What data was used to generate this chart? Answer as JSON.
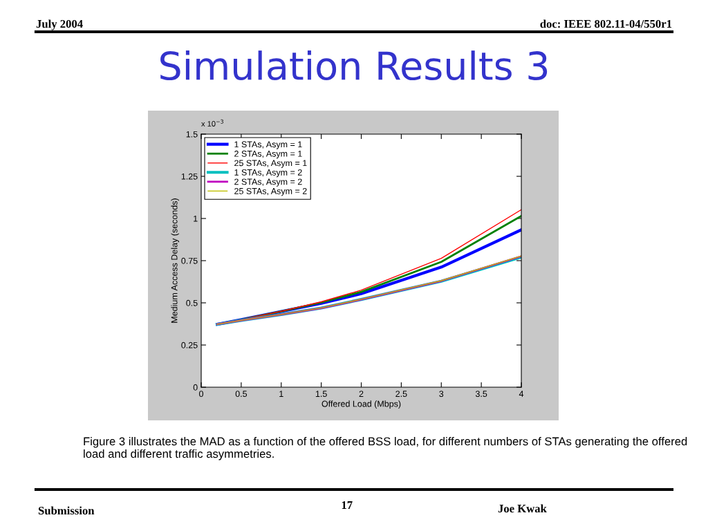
{
  "chart_data": {
    "type": "line",
    "title": "Simulation Results 3",
    "xlabel": "Offered Load (Mbps)",
    "ylabel": "Medium Access Delay (seconds)",
    "x": [
      0.2,
      0.5,
      1,
      1.5,
      2,
      3,
      4
    ],
    "series": [
      {
        "name": "1 STAs, Asym = 1",
        "color": "#0000ff",
        "values": [
          0.373,
          0.4,
          0.449,
          0.497,
          0.554,
          0.712,
          0.933
        ]
      },
      {
        "name": "2 STAs, Asym = 1",
        "color": "#008000",
        "values": [
          0.373,
          0.4,
          0.449,
          0.502,
          0.565,
          0.743,
          1.015
        ]
      },
      {
        "name": "25 STAs, Asym = 1",
        "color": "#ff0000",
        "values": [
          0.373,
          0.401,
          0.45,
          0.506,
          0.575,
          0.764,
          1.052
        ]
      },
      {
        "name": "1 STAs, Asym = 2",
        "color": "#00bfbf",
        "values": [
          0.373,
          0.396,
          0.431,
          0.469,
          0.52,
          0.628,
          0.771
        ]
      },
      {
        "name": "2 STAs, Asym = 2",
        "color": "#bf00bf",
        "values": [
          0.373,
          0.396,
          0.431,
          0.469,
          0.52,
          0.63,
          0.776
        ]
      },
      {
        "name": "25 STAs, Asym = 2",
        "color": "#bfbf00",
        "values": [
          0.373,
          0.396,
          0.431,
          0.47,
          0.521,
          0.631,
          0.778
        ]
      }
    ],
    "xlim": [
      0,
      4
    ],
    "xticks": [
      0,
      0.5,
      1,
      1.5,
      2,
      2.5,
      3,
      3.5,
      4
    ],
    "ylim": [
      0,
      1.5
    ],
    "yticks": [
      0,
      0.25,
      0.5,
      0.75,
      1,
      1.25,
      1.5
    ],
    "grid": false,
    "legend": "top left",
    "marker": "none",
    "line_style": "solid",
    "annotations": [
      "x 10$^{−3}$",
      "July 2004",
      "doc: IEEE 802.11-04/550r1",
      "Figure 3 illustrates the MAD as a function of the offered BSS load, for different numbers of STAs generating the offered load and different traffic asymmetries.",
      "Submission",
      "17",
      "Joe Kwak"
    ]
  }
}
